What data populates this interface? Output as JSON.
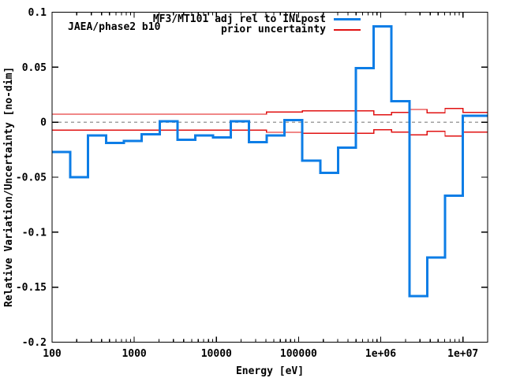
{
  "labels": {
    "plot_label": "JAEA/phase2 b10",
    "xlabel": "Energy [eV]",
    "ylabel": "Relative Variation/Uncertainty [no-dim]"
  },
  "legend": [
    {
      "label": "MF3/MT101 adj rel to INLpost",
      "color": "#0d7de6",
      "thickness": 3
    },
    {
      "label": "prior uncertainty",
      "color": "#e01212",
      "thickness": 2
    }
  ],
  "colors": {
    "adjustment_series": "#0d7de6",
    "prior_series": "#e01212",
    "zero_line": "#a0a0a0",
    "axis": "#000000",
    "background": "#ffffff"
  },
  "chart_data": {
    "type": "line",
    "subtype": "step-histogram",
    "title": "",
    "annotation": "JAEA/phase2 b10",
    "xlabel": "Energy [eV]",
    "ylabel": "Relative Variation/Uncertainty [no-dim]",
    "x_scale": "log",
    "x_range": [
      100,
      20000000
    ],
    "y_range": [
      -0.2,
      0.1
    ],
    "grid": false,
    "zero_line_dashed": true,
    "legend_position": "top-right-inside",
    "x_ticks": [
      {
        "v": 100,
        "label": "100"
      },
      {
        "v": 1000,
        "label": "1000"
      },
      {
        "v": 10000,
        "label": "10000"
      },
      {
        "v": 100000,
        "label": "100000"
      },
      {
        "v": 1000000,
        "label": "1e+06"
      },
      {
        "v": 10000000,
        "label": "1e+07"
      }
    ],
    "y_ticks": [
      {
        "v": 0.1,
        "label": "0.1"
      },
      {
        "v": 0.05,
        "label": "0.05"
      },
      {
        "v": 0,
        "label": "0"
      },
      {
        "v": -0.05,
        "label": "-0.05"
      },
      {
        "v": -0.1,
        "label": "-0.1"
      },
      {
        "v": -0.15,
        "label": "-0.15"
      },
      {
        "v": -0.2,
        "label": "-0.2"
      }
    ],
    "series": [
      {
        "name": "MF3/MT101 adj rel to INLpost",
        "style": "step",
        "color": "#0d7de6",
        "width": 3,
        "boundaries_eV": [
          100,
          167,
          275,
          454,
          749,
          1234,
          2035,
          3355,
          5531,
          9119,
          15034,
          24788,
          40868,
          67379,
          111090,
          183156,
          301974,
          497871,
          820850,
          1353353,
          2231302,
          3678794,
          6065307,
          10000000,
          20000000
        ],
        "values": [
          -0.027,
          -0.05,
          -0.012,
          -0.019,
          -0.017,
          -0.011,
          0.001,
          -0.016,
          -0.012,
          -0.014,
          0.001,
          -0.018,
          -0.012,
          0.002,
          -0.035,
          -0.046,
          -0.023,
          0.049,
          0.087,
          0.019,
          -0.158,
          -0.123,
          -0.067,
          0.006
        ]
      },
      {
        "name": "prior uncertainty",
        "style": "step-symmetric-pair",
        "color": "#e01212",
        "width": 1.4,
        "boundaries_eV": [
          100,
          40868,
          111090,
          820850,
          1353353,
          2231302,
          3678794,
          6065307,
          10000000,
          20000000
        ],
        "values": [
          0.0073,
          0.0092,
          0.0102,
          0.0068,
          0.0089,
          0.0116,
          0.0084,
          0.0126,
          0.009
        ]
      }
    ]
  }
}
